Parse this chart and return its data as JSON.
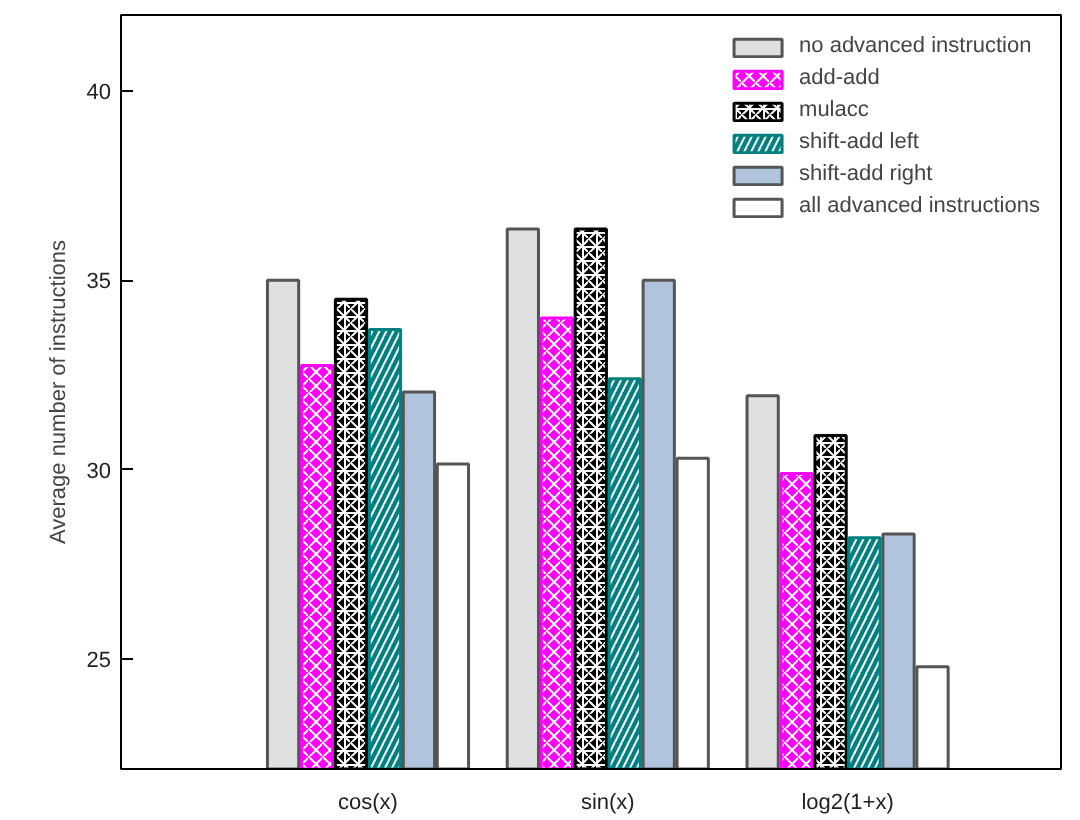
{
  "chart_data": {
    "type": "bar",
    "ylabel": "Average number of instructions",
    "categories": [
      "cos(x)",
      "sin(x)",
      "log2(1+x)"
    ],
    "series": [
      {
        "name": "no advanced instruction",
        "color": "#e0e0e0",
        "values": [
          35.0,
          36.35,
          31.95
        ]
      },
      {
        "name": "add-add",
        "color": "#ff00ff",
        "values": [
          32.75,
          34.0,
          29.9
        ]
      },
      {
        "name": "mulacc",
        "color": "#000000",
        "values": [
          34.5,
          36.35,
          30.9
        ]
      },
      {
        "name": "shift-add left",
        "color": "#008080",
        "values": [
          33.7,
          32.4,
          28.2
        ]
      },
      {
        "name": "shift-add right",
        "color": "#b0c4de",
        "values": [
          32.05,
          35.0,
          28.3
        ]
      },
      {
        "name": "all advanced instructions",
        "color": "#ffffff",
        "values": [
          30.15,
          30.3,
          24.8
        ]
      }
    ],
    "ylim": [
      22.1,
      42
    ],
    "yticks": [
      25,
      30,
      35,
      40
    ],
    "grid": false,
    "legend": "top right"
  }
}
